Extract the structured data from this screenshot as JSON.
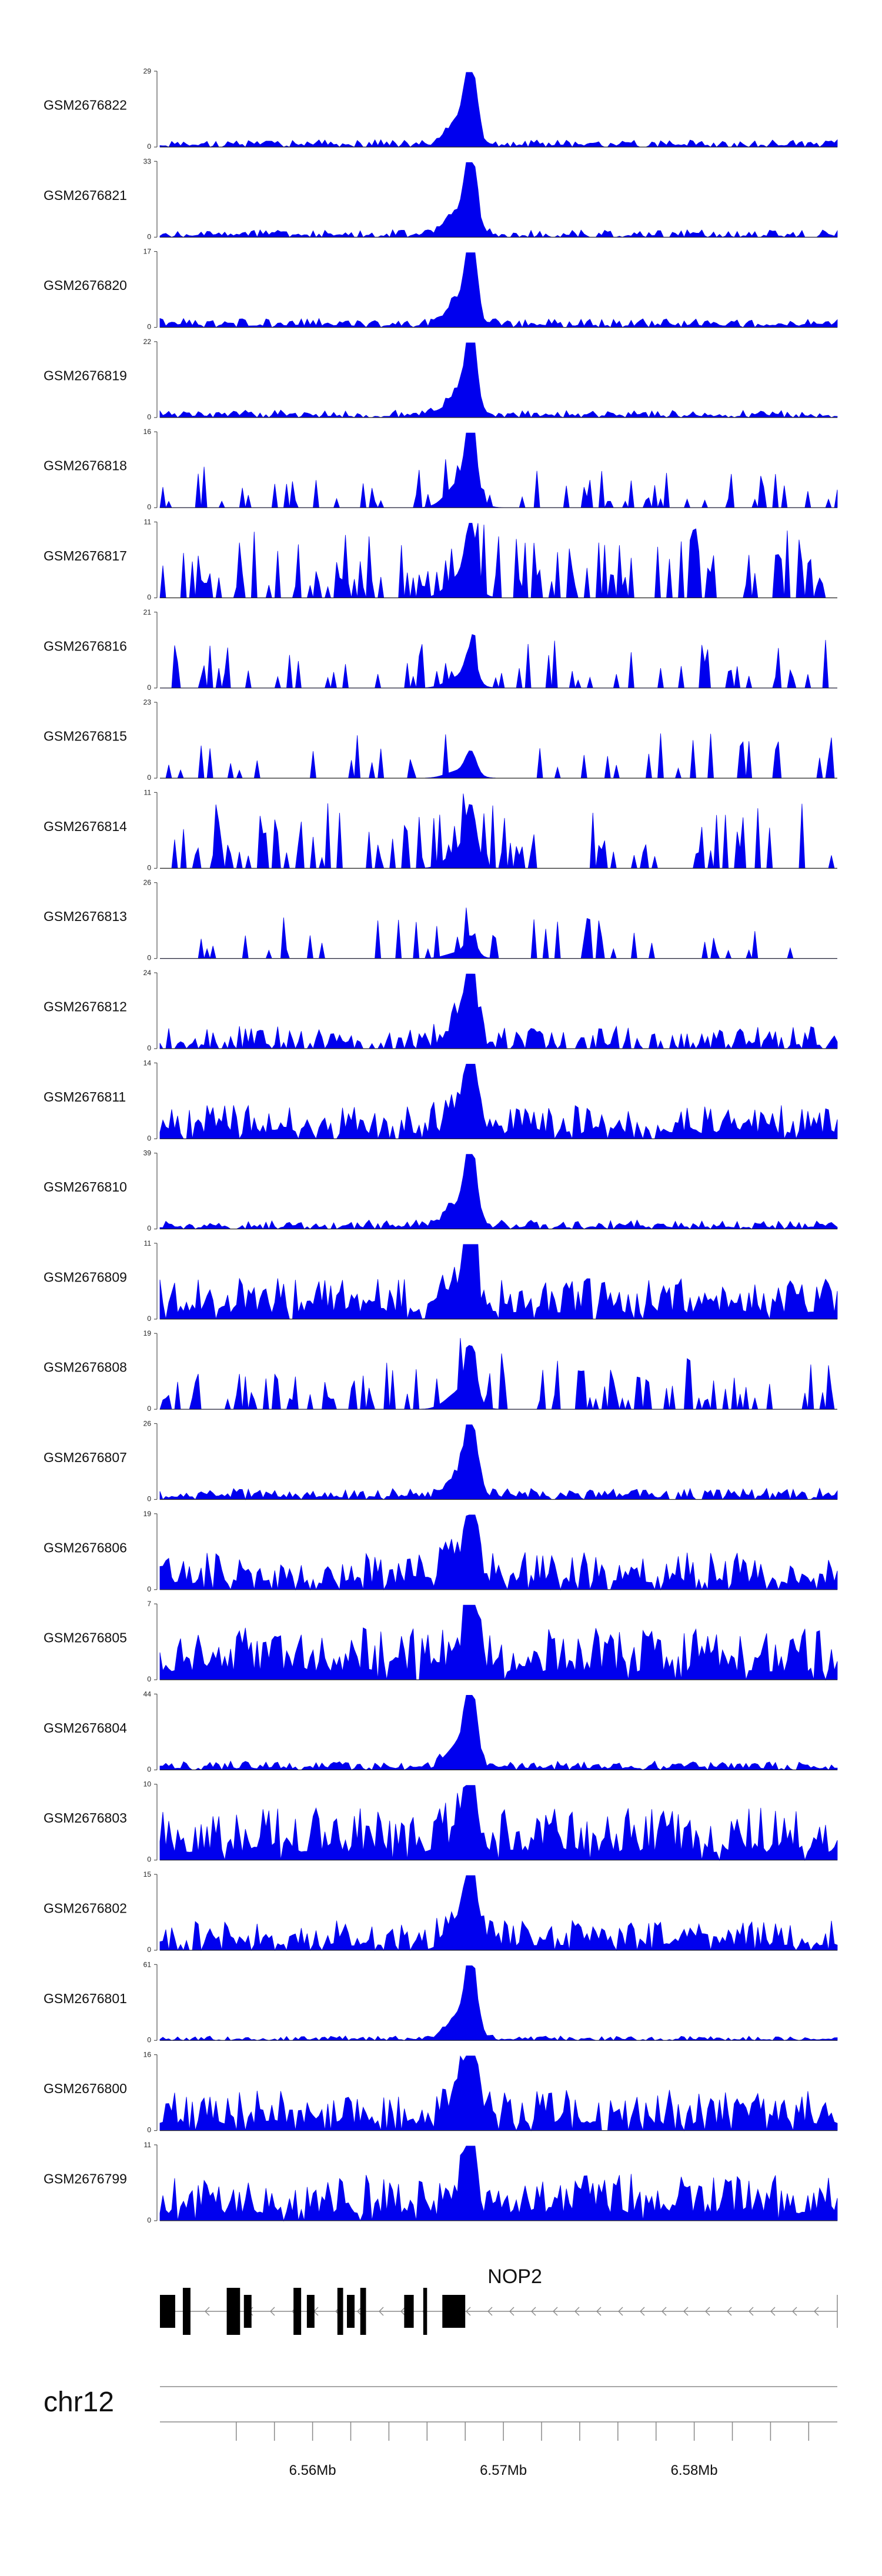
{
  "chart_data": {
    "type": "area",
    "title": "",
    "track_type": "coverage",
    "fill_color": "#0000ee",
    "x_unit": "Mb",
    "xlim": [
      6.552,
      6.5875
    ],
    "axis_ticks": [
      6.556,
      6.558,
      6.56,
      6.562,
      6.564,
      6.566,
      6.568,
      6.57,
      6.572,
      6.574,
      6.576,
      6.578,
      6.58,
      6.582,
      6.584,
      6.586
    ],
    "axis_tick_labels": [
      {
        "pos": 6.56,
        "label": "6.56Mb"
      },
      {
        "pos": 6.57,
        "label": "6.57Mb"
      },
      {
        "pos": 6.58,
        "label": "6.58Mb"
      }
    ],
    "chromosome": "chr12",
    "gene": {
      "name": "NOP2",
      "strand": "-",
      "start": 6.552,
      "end": 6.5875,
      "exons": [
        {
          "start": 6.552,
          "end": 6.5528,
          "thick": true
        },
        {
          "start": 6.5532,
          "end": 6.5536,
          "thick": false
        },
        {
          "start": 6.5555,
          "end": 6.5562,
          "thick": false
        },
        {
          "start": 6.5564,
          "end": 6.5568,
          "thick": true
        },
        {
          "start": 6.559,
          "end": 6.5594,
          "thick": false
        },
        {
          "start": 6.5597,
          "end": 6.5601,
          "thick": true
        },
        {
          "start": 6.5613,
          "end": 6.5616,
          "thick": false
        },
        {
          "start": 6.5618,
          "end": 6.5622,
          "thick": true
        },
        {
          "start": 6.5625,
          "end": 6.5628,
          "thick": false
        },
        {
          "start": 6.5648,
          "end": 6.5653,
          "thick": true
        },
        {
          "start": 6.5658,
          "end": 6.566,
          "thick": false
        },
        {
          "start": 6.5668,
          "end": 6.568,
          "thick": true
        }
      ]
    },
    "summit_position": 6.5683,
    "series": [
      {
        "name": "GSM2676822",
        "ymax": "29",
        "peak_height": 1.0,
        "noise": 0.1,
        "sparsity": 0.15,
        "seed": 1
      },
      {
        "name": "GSM2676821",
        "ymax": "33",
        "peak_height": 1.0,
        "noise": 0.1,
        "sparsity": 0.25,
        "seed": 2
      },
      {
        "name": "GSM2676820",
        "ymax": "17",
        "peak_height": 1.0,
        "noise": 0.12,
        "sparsity": 0.1,
        "seed": 3
      },
      {
        "name": "GSM2676819",
        "ymax": "22",
        "peak_height": 1.0,
        "noise": 0.1,
        "sparsity": 0.15,
        "seed": 4
      },
      {
        "name": "GSM2676818",
        "ymax": "16",
        "peak_height": 1.0,
        "noise": 0.55,
        "sparsity": 0.75,
        "seed": 5
      },
      {
        "name": "GSM2676817",
        "ymax": "11",
        "peak_height": 0.85,
        "noise": 0.95,
        "sparsity": 0.7,
        "seed": 6
      },
      {
        "name": "GSM2676816",
        "ymax": "21",
        "peak_height": 0.45,
        "noise": 0.65,
        "sparsity": 0.78,
        "seed": 7
      },
      {
        "name": "GSM2676815",
        "ymax": "23",
        "peak_height": 0.3,
        "noise": 0.6,
        "sparsity": 0.88,
        "seed": 8
      },
      {
        "name": "GSM2676814",
        "ymax": "11",
        "peak_height": 0.7,
        "noise": 0.9,
        "sparsity": 0.68,
        "seed": 9
      },
      {
        "name": "GSM2676813",
        "ymax": "26",
        "peak_height": 0.25,
        "noise": 0.65,
        "sparsity": 0.85,
        "seed": 10
      },
      {
        "name": "GSM2676812",
        "ymax": "24",
        "peak_height": 1.0,
        "noise": 0.3,
        "sparsity": 0.3,
        "seed": 11
      },
      {
        "name": "GSM2676811",
        "ymax": "14",
        "peak_height": 1.0,
        "noise": 0.45,
        "sparsity": 0.1,
        "seed": 12
      },
      {
        "name": "GSM2676810",
        "ymax": "39",
        "peak_height": 1.0,
        "noise": 0.12,
        "sparsity": 0.15,
        "seed": 13
      },
      {
        "name": "GSM2676809",
        "ymax": "11",
        "peak_height": 1.0,
        "noise": 0.55,
        "sparsity": 0.1,
        "seed": 14
      },
      {
        "name": "GSM2676808",
        "ymax": "19",
        "peak_height": 0.7,
        "noise": 0.75,
        "sparsity": 0.6,
        "seed": 15
      },
      {
        "name": "GSM2676807",
        "ymax": "26",
        "peak_height": 1.0,
        "noise": 0.15,
        "sparsity": 0.1,
        "seed": 16
      },
      {
        "name": "GSM2676806",
        "ymax": "19",
        "peak_height": 1.0,
        "noise": 0.5,
        "sparsity": 0.15,
        "seed": 17
      },
      {
        "name": "GSM2676805",
        "ymax": "7",
        "peak_height": 0.9,
        "noise": 0.7,
        "sparsity": 0.05,
        "seed": 18
      },
      {
        "name": "GSM2676804",
        "ymax": "44",
        "peak_height": 1.0,
        "noise": 0.12,
        "sparsity": 0.1,
        "seed": 19
      },
      {
        "name": "GSM2676803",
        "ymax": "10",
        "peak_height": 0.9,
        "noise": 0.7,
        "sparsity": 0.05,
        "seed": 20
      },
      {
        "name": "GSM2676802",
        "ymax": "15",
        "peak_height": 1.0,
        "noise": 0.4,
        "sparsity": 0.1,
        "seed": 21
      },
      {
        "name": "GSM2676801",
        "ymax": "61",
        "peak_height": 1.0,
        "noise": 0.06,
        "sparsity": 0.2,
        "seed": 22
      },
      {
        "name": "GSM2676800",
        "ymax": "16",
        "peak_height": 1.0,
        "noise": 0.55,
        "sparsity": 0.1,
        "seed": 23
      },
      {
        "name": "GSM2676799",
        "ymax": "11",
        "peak_height": 1.0,
        "noise": 0.65,
        "sparsity": 0.1,
        "seed": 24
      }
    ]
  }
}
